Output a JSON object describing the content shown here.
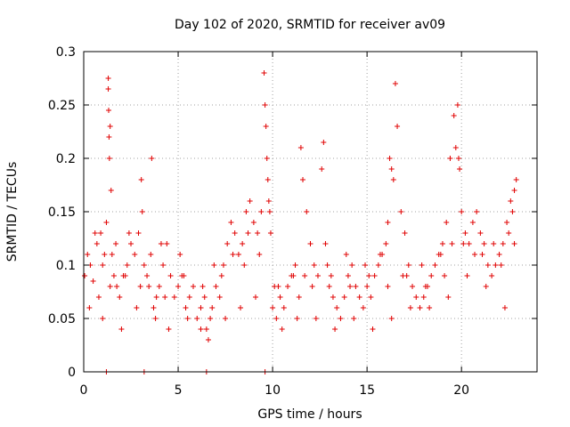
{
  "chart_data": {
    "type": "scatter",
    "title": "Day 102 of 2020, SRMTID for receiver av09",
    "xlabel": "GPS time / hours",
    "ylabel": "SRMTID / TECUs",
    "xlim": [
      0,
      24
    ],
    "ylim": [
      0,
      0.3
    ],
    "x_ticks": [
      0,
      5,
      10,
      15,
      20
    ],
    "x_tick_labels": [
      "0",
      "5",
      "10",
      "15",
      "20"
    ],
    "y_ticks": [
      0,
      0.05,
      0.1,
      0.15,
      0.2,
      0.25,
      0.3
    ],
    "y_tick_labels": [
      "0",
      "0.05",
      "0.1",
      "0.15",
      "0.2",
      "0.25",
      "0.3"
    ],
    "grid": true,
    "marker": "plus",
    "color": "#e00000",
    "series": [
      {
        "name": "SRMTID",
        "x": [
          0.05,
          0.2,
          0.35,
          0.5,
          0.7,
          0.9,
          1.0,
          1.1,
          1.2,
          1.3,
          1.3,
          1.32,
          1.34,
          1.36,
          1.4,
          1.45,
          1.5,
          1.6,
          1.75,
          1.9,
          2.1,
          2.3,
          2.5,
          2.7,
          2.9,
          3.05,
          3.1,
          3.2,
          3.35,
          3.45,
          3.55,
          3.6,
          3.7,
          3.85,
          4.0,
          4.2,
          4.4,
          4.6,
          4.8,
          5.0,
          5.2,
          5.4,
          5.6,
          5.8,
          6.0,
          6.2,
          6.4,
          6.5,
          6.6,
          6.7,
          6.8,
          7.0,
          7.2,
          7.4,
          7.6,
          7.8,
          8.0,
          8.2,
          8.4,
          8.6,
          8.8,
          9.0,
          9.2,
          9.4,
          9.55,
          9.6,
          9.65,
          9.7,
          9.75,
          9.8,
          9.85,
          9.9,
          10.0,
          10.2,
          10.4,
          10.6,
          10.8,
          11.0,
          11.2,
          11.4,
          11.5,
          11.6,
          11.8,
          12.0,
          12.2,
          12.4,
          12.6,
          12.7,
          12.8,
          13.0,
          13.2,
          13.4,
          13.6,
          13.8,
          14.0,
          14.2,
          14.4,
          14.6,
          14.8,
          15.0,
          15.2,
          15.4,
          15.6,
          15.8,
          16.0,
          16.1,
          16.2,
          16.3,
          16.4,
          16.5,
          16.6,
          16.8,
          17.0,
          17.2,
          17.4,
          17.6,
          17.8,
          18.0,
          18.2,
          18.4,
          18.6,
          18.8,
          19.0,
          19.2,
          19.4,
          19.6,
          19.7,
          19.8,
          19.85,
          19.9,
          20.0,
          20.2,
          20.4,
          20.6,
          20.8,
          21.0,
          21.2,
          21.4,
          21.6,
          21.8,
          22.0,
          22.2,
          22.4,
          22.6,
          22.7,
          22.8,
          22.9,
          1.2,
          3.2,
          6.5,
          9.6,
          0.3,
          1.0,
          2.0,
          2.8,
          3.8,
          4.5,
          5.5,
          6.2,
          7.5,
          8.3,
          9.1,
          10.5,
          11.3,
          12.3,
          13.3,
          14.3,
          15.3,
          16.3,
          17.3,
          18.3,
          19.3,
          20.3,
          21.3,
          22.3,
          0.6,
          1.7,
          2.4,
          4.1,
          5.1,
          6.9,
          7.9,
          8.7,
          10.1,
          11.7,
          12.9,
          13.9,
          14.9,
          15.7,
          16.9,
          17.9,
          18.9,
          19.5,
          20.7,
          21.7,
          22.5,
          0.8,
          1.4,
          2.2,
          3.0,
          4.3,
          5.3,
          6.3,
          7.3,
          8.5,
          9.3,
          10.3,
          11.1,
          12.1,
          13.1,
          14.1,
          15.1,
          16.1,
          17.1,
          18.1,
          19.1,
          20.1,
          21.1,
          22.1,
          22.8
        ],
        "y": [
          0.09,
          0.11,
          0.1,
          0.085,
          0.12,
          0.13,
          0.1,
          0.11,
          0.14,
          0.275,
          0.265,
          0.245,
          0.22,
          0.2,
          0.23,
          0.17,
          0.11,
          0.09,
          0.08,
          0.07,
          0.09,
          0.1,
          0.12,
          0.11,
          0.13,
          0.18,
          0.15,
          0.1,
          0.09,
          0.08,
          0.11,
          0.2,
          0.06,
          0.07,
          0.08,
          0.1,
          0.12,
          0.09,
          0.07,
          0.08,
          0.09,
          0.06,
          0.07,
          0.08,
          0.05,
          0.06,
          0.07,
          0.04,
          0.03,
          0.05,
          0.06,
          0.08,
          0.07,
          0.1,
          0.12,
          0.14,
          0.13,
          0.11,
          0.12,
          0.15,
          0.16,
          0.14,
          0.13,
          0.15,
          0.28,
          0.25,
          0.23,
          0.2,
          0.18,
          0.16,
          0.15,
          0.13,
          0.06,
          0.05,
          0.07,
          0.06,
          0.08,
          0.09,
          0.1,
          0.07,
          0.21,
          0.18,
          0.15,
          0.12,
          0.1,
          0.09,
          0.19,
          0.215,
          0.12,
          0.08,
          0.07,
          0.06,
          0.05,
          0.07,
          0.09,
          0.1,
          0.08,
          0.07,
          0.06,
          0.08,
          0.07,
          0.09,
          0.1,
          0.11,
          0.12,
          0.14,
          0.2,
          0.19,
          0.18,
          0.27,
          0.23,
          0.15,
          0.13,
          0.1,
          0.08,
          0.07,
          0.06,
          0.07,
          0.08,
          0.09,
          0.1,
          0.11,
          0.12,
          0.14,
          0.2,
          0.24,
          0.21,
          0.25,
          0.2,
          0.19,
          0.15,
          0.13,
          0.12,
          0.14,
          0.15,
          0.13,
          0.12,
          0.1,
          0.09,
          0.1,
          0.11,
          0.12,
          0.14,
          0.16,
          0.15,
          0.17,
          0.18,
          0.0,
          0.0,
          0.0,
          0.0,
          0.06,
          0.05,
          0.04,
          0.06,
          0.05,
          0.04,
          0.05,
          0.04,
          0.05,
          0.06,
          0.07,
          0.04,
          0.05,
          0.05,
          0.04,
          0.05,
          0.04,
          0.05,
          0.06,
          0.06,
          0.07,
          0.09,
          0.08,
          0.06,
          0.13,
          0.12,
          0.13,
          0.12,
          0.11,
          0.1,
          0.11,
          0.13,
          0.08,
          0.09,
          0.1,
          0.11,
          0.1,
          0.11,
          0.09,
          0.1,
          0.11,
          0.12,
          0.11,
          0.12,
          0.13,
          0.07,
          0.08,
          0.09,
          0.08,
          0.07,
          0.09,
          0.08,
          0.09,
          0.1,
          0.11,
          0.08,
          0.09,
          0.08,
          0.09,
          0.08,
          0.09,
          0.08,
          0.09,
          0.08,
          0.09,
          0.12,
          0.11,
          0.1,
          0.12
        ]
      }
    ]
  }
}
